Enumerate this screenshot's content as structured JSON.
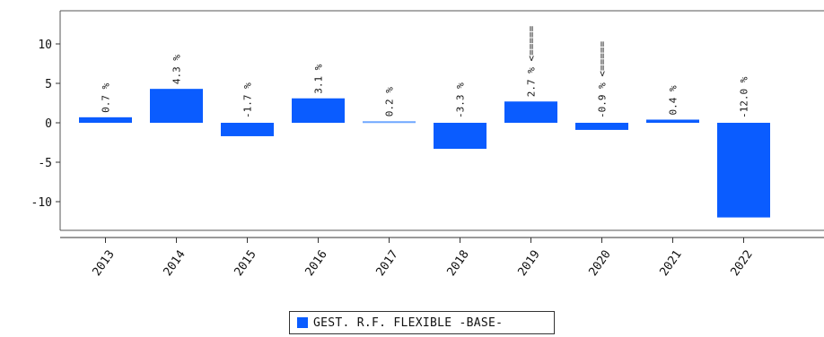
{
  "chart_data": {
    "type": "bar",
    "categories": [
      "2013",
      "2014",
      "2015",
      "2016",
      "2017",
      "2018",
      "2019",
      "2020",
      "2021",
      "2022"
    ],
    "series": [
      {
        "name": "GEST. R.F. FLEXIBLE -BASE-",
        "values": [
          0.7,
          4.3,
          -1.7,
          3.1,
          0.2,
          -3.3,
          2.7,
          -0.9,
          0.4,
          -12.0
        ]
      }
    ],
    "data_labels": [
      "0.7 %",
      "4.3 %",
      "-1.7 %",
      "3.1 %",
      "0.2 %",
      "-3.3 %",
      "2.7 % <=====",
      "-0.9 % <=====",
      "0.4 %",
      "-12.0 %"
    ],
    "highlighted": [
      false,
      false,
      false,
      false,
      true,
      false,
      false,
      false,
      false,
      false
    ],
    "yticks": [
      10,
      5,
      0,
      -5,
      -10
    ],
    "ylim": [
      -14,
      14
    ],
    "grid": false,
    "legend": "bottom-center",
    "colors": {
      "bar": "#0a5cff",
      "bar_highlight": "#6fa8ff",
      "axis": "#333333"
    }
  }
}
